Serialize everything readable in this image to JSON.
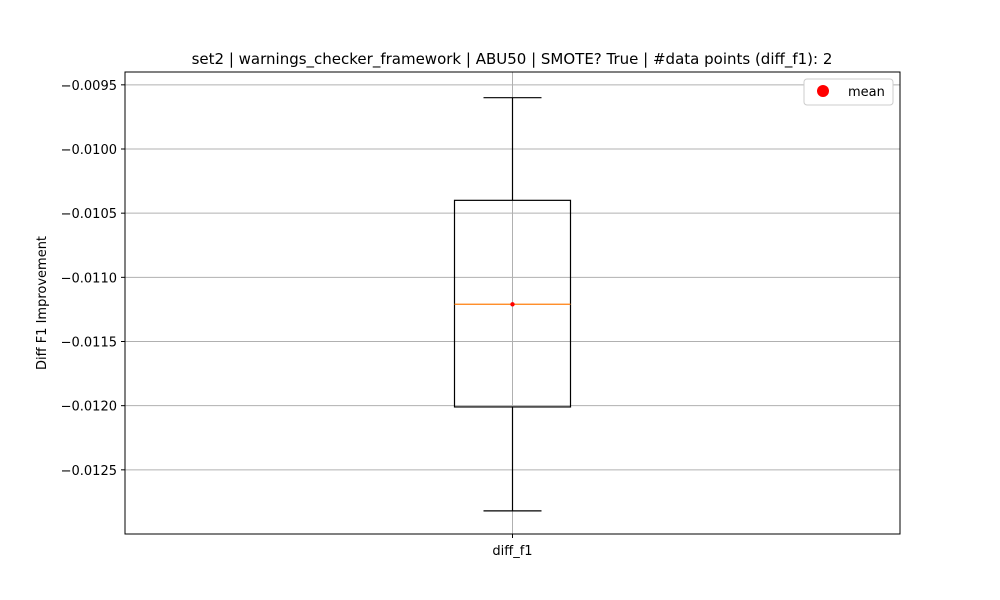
{
  "chart_data": {
    "type": "box",
    "title": "set2 | warnings_checker_framework | ABU50 | SMOTE? True | #data points (diff_f1): 2",
    "xlabel": "",
    "ylabel": "Diff F1 Improvement",
    "categories": [
      "diff_f1"
    ],
    "ylim": [
      -0.013,
      -0.0094
    ],
    "yticks": [
      -0.0095,
      -0.01,
      -0.0105,
      -0.011,
      -0.0115,
      -0.012,
      -0.0125
    ],
    "ytick_labels": [
      "−0.0095",
      "−0.0100",
      "−0.0105",
      "−0.0110",
      "−0.0115",
      "−0.0120",
      "−0.0125"
    ],
    "grid": true,
    "legend": {
      "position": "top-right",
      "entries": [
        {
          "name": "mean",
          "color": "#ff0000",
          "marker": "circle"
        }
      ]
    },
    "series": [
      {
        "category": "diff_f1",
        "whisker_low": -0.01282,
        "q1": -0.01201,
        "median": -0.01121,
        "q3": -0.0104,
        "whisker_high": -0.0096,
        "mean": -0.01121
      }
    ],
    "colors": {
      "box": "#000000",
      "median": "#ff7f0e",
      "mean": "#ff0000",
      "grid": "#b0b0b0"
    }
  }
}
